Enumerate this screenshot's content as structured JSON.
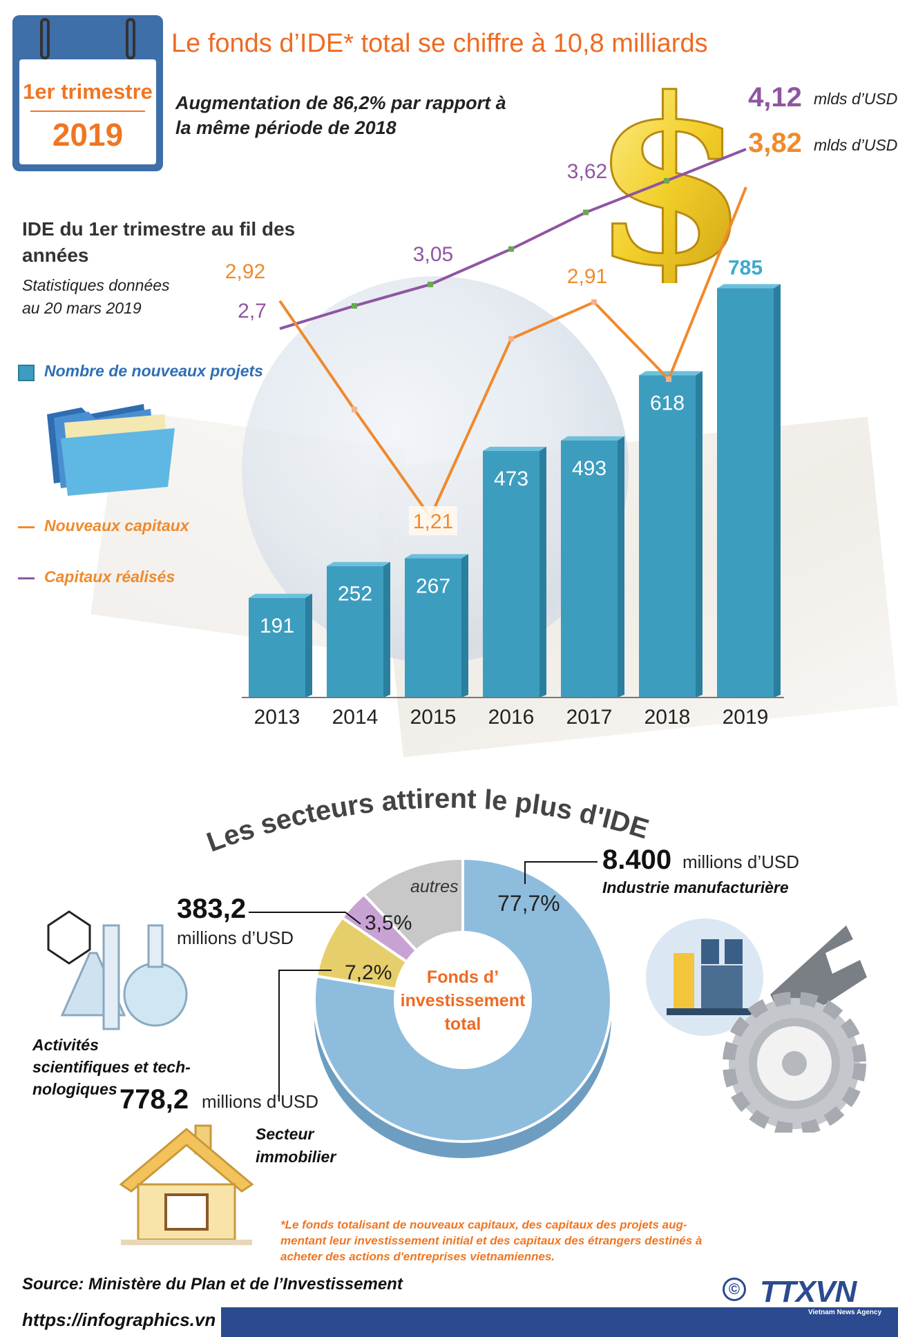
{
  "calendar": {
    "line1": "1er trimestre",
    "line2": "2019"
  },
  "title": "Le fonds d’IDE* total se chiffre à 10,8 milliards",
  "subtitle": {
    "line1": "Augmentation de 86,2% par rapport à",
    "line2": "la même période de 2018"
  },
  "section1": {
    "heading_line1": "IDE du 1er trimestre au fil des",
    "heading_line2": "années",
    "note_line1": "Statistiques  données",
    "note_line2": "au 20 mars 2019"
  },
  "legend": {
    "projects": "Nombre de nouveaux projets",
    "new_capital": "Nouveaux capitaux",
    "realized_capital": "Capitaux réalisés"
  },
  "value_unit": "mlds d’USD",
  "chart_data": {
    "type": "bar",
    "categories": [
      "2013",
      "2014",
      "2015",
      "2016",
      "2017",
      "2018",
      "2019"
    ],
    "values": [
      191,
      252,
      267,
      473,
      493,
      618,
      785
    ],
    "value_labels": [
      "191",
      "252",
      "267",
      "473",
      "493",
      "618",
      "785"
    ],
    "series": [
      {
        "name": "Nombre de nouveaux projets",
        "type": "bar",
        "values": [
          191,
          252,
          267,
          473,
          493,
          618,
          785
        ]
      },
      {
        "name": "Nouveaux capitaux",
        "type": "line",
        "values": [
          2.92,
          null,
          1.21,
          null,
          2.91,
          null,
          3.82
        ],
        "labels": [
          "2,92",
          "",
          "1,21",
          "",
          "2,91",
          "",
          "3,82"
        ]
      },
      {
        "name": "Capitaux réalisés",
        "type": "line",
        "values": [
          2.7,
          null,
          3.05,
          null,
          3.62,
          null,
          4.12
        ],
        "labels": [
          "2,7",
          "",
          "3,05",
          "",
          "3,62",
          "",
          "4,12"
        ]
      }
    ],
    "colors": {
      "bars": "#3d9dbf",
      "new_capital": "#f08a2c",
      "realized_capital": "#8f55a2"
    }
  },
  "sectors": {
    "title": "Les secteurs attirent le plus d'IDE",
    "center_label_line1": "Fonds d’",
    "center_label_line2": "investissement",
    "center_label_line3": "total",
    "donut": [
      {
        "label": "77,7%",
        "value": 77.7,
        "color": "#8ebcdd"
      },
      {
        "label": "7,2%",
        "value": 7.2,
        "color": "#e6cf6a"
      },
      {
        "label": "3,5%",
        "value": 3.5,
        "color": "#c9a2d4"
      },
      {
        "label": "autres",
        "value": 11.6,
        "color": "#c8c8c8"
      }
    ],
    "manufacturing": {
      "amount": "8.400",
      "unit": "millions d’USD",
      "name": "Industrie manufacturière"
    },
    "science": {
      "amount": "383,2",
      "unit": "millions d’USD",
      "name_line1": "Activités",
      "name_line2": "scientifiques et tech-",
      "name_line3": "nologiques"
    },
    "real_estate": {
      "amount": "778,2",
      "unit": "millions d’USD",
      "name_line1": "Secteur",
      "name_line2": "immobilier"
    }
  },
  "footnote": {
    "line1": "*Le fonds totalisant  de nouveaux capitaux,  des capitaux des projets aug-",
    "line2": "mentant leur investissement initial et des capitaux des étrangers destinés à",
    "line3": "acheter des actions d'entreprises vietnamiennes."
  },
  "source": "Source:  Ministère du Plan et de l’Investissement",
  "url": "https://infographics.vn",
  "logo": {
    "text": "TTXVN",
    "sub": "Vietnam News Agency",
    "copyright": "©"
  }
}
